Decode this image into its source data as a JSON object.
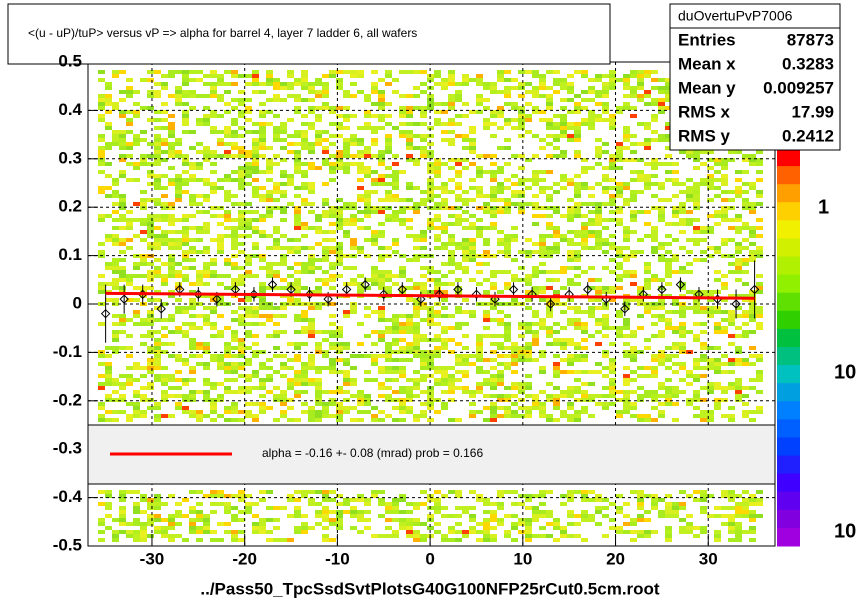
{
  "title": "<(u - uP)/tuP> versus   vP => alpha for barrel 4, layer 7 ladder 6, all wafers",
  "stats": {
    "name": "duOvertuPvP7006",
    "rows": [
      [
        "Entries",
        87873
      ],
      [
        "Mean x",
        0.3283
      ],
      [
        "Mean y",
        0.009257
      ],
      [
        "RMS x",
        17.99
      ],
      [
        "RMS y",
        0.2412
      ]
    ]
  },
  "chart_data": {
    "type": "profile2d",
    "xlabel": "../Pass50_TpcSsdSvtPlotsG40G100NFP25rCut0.5cm.root",
    "xlim": [
      -36.9,
      37.2
    ],
    "ylim": [
      -0.5,
      0.5
    ],
    "xticks": [
      -30,
      -20,
      -10,
      0,
      10,
      20,
      30
    ],
    "yticks": [
      -0.5,
      -0.4,
      -0.3,
      -0.2,
      -0.1,
      0,
      0.1,
      0.2,
      0.3,
      0.4,
      0.5
    ],
    "grid": true,
    "series": [
      {
        "color": "#000000",
        "x": [
          -35,
          -33,
          -31,
          -29,
          -27,
          -25,
          -23,
          -21,
          -19,
          -17,
          -15,
          -13,
          -11,
          -9,
          -7,
          -5,
          -3,
          -1,
          1,
          3,
          5,
          7,
          9,
          11,
          13,
          15,
          17,
          19,
          21,
          23,
          25,
          27,
          29,
          31,
          33,
          35
        ],
        "values": [
          -0.02,
          0.01,
          0.02,
          -0.01,
          0.03,
          0.02,
          0.01,
          0.03,
          0.02,
          0.04,
          0.03,
          0.02,
          0.01,
          0.03,
          0.04,
          0.02,
          0.03,
          0.01,
          0.02,
          0.03,
          0.02,
          0.01,
          0.03,
          0.02,
          0.0,
          0.02,
          0.03,
          0.01,
          -0.01,
          0.02,
          0.03,
          0.04,
          0.02,
          0.01,
          0.0,
          0.03
        ],
        "errors": [
          0.06,
          0.03,
          0.02,
          0.02,
          0.015,
          0.015,
          0.015,
          0.015,
          0.015,
          0.015,
          0.015,
          0.015,
          0.015,
          0.015,
          0.015,
          0.015,
          0.015,
          0.015,
          0.015,
          0.015,
          0.015,
          0.015,
          0.015,
          0.015,
          0.015,
          0.015,
          0.015,
          0.015,
          0.015,
          0.015,
          0.015,
          0.015,
          0.015,
          0.02,
          0.03,
          0.06
        ]
      },
      {
        "color": "#ff0000",
        "x": [
          -35,
          35
        ],
        "values": [
          0.022,
          0.012
        ]
      }
    ],
    "fit_label": "alpha =   -0.16 +-  0.08 (mrad) prob = 0.166",
    "palette_labels": [
      "1",
      "10",
      "10"
    ]
  }
}
